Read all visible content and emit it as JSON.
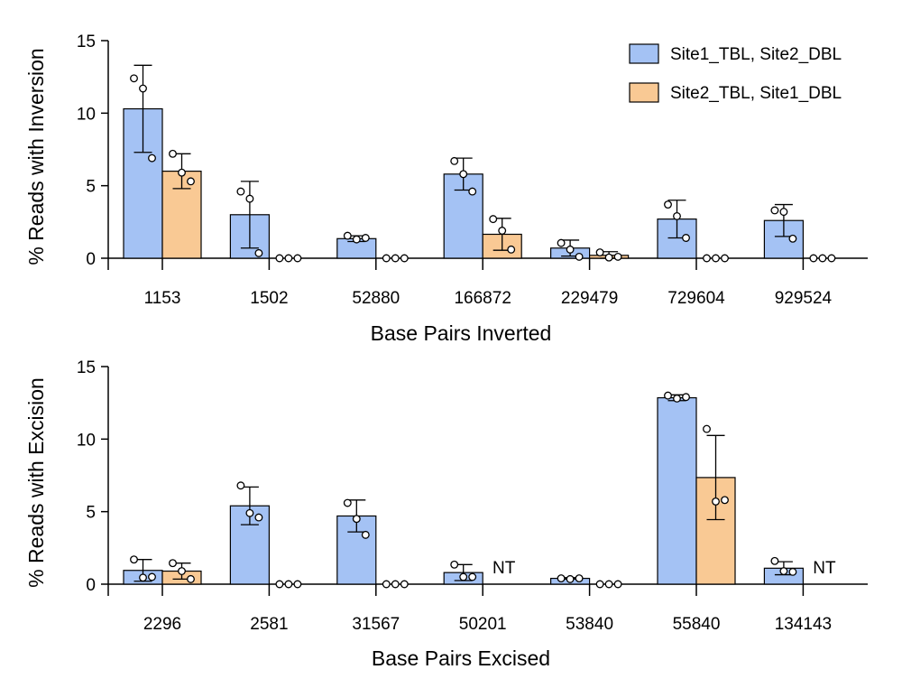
{
  "colors": {
    "series_1": "#a4c2f4",
    "series_2": "#f9c994",
    "stroke": "#000000"
  },
  "legend": {
    "placement": "top-right",
    "entries": [
      "Site1_TBL, Site2_DBL",
      "Site2_TBL, Site1_DBL"
    ]
  },
  "chart_data": [
    {
      "type": "bar",
      "xlabel": "Base Pairs Inverted",
      "ylabel": "% Reads with Inversion",
      "ylim": [
        0,
        15
      ],
      "yticks": [
        0,
        5,
        10,
        15
      ],
      "grid": false,
      "legend": true,
      "categories": [
        "1153",
        "1502",
        "52880",
        "166872",
        "229479",
        "729604",
        "929524"
      ],
      "series": [
        {
          "name": "Site1_TBL, Site2_DBL",
          "values": [
            10.3,
            3.0,
            1.35,
            5.8,
            0.7,
            2.7,
            2.6
          ],
          "error": [
            3.0,
            2.3,
            0.2,
            1.1,
            0.55,
            1.3,
            1.1
          ],
          "points": [
            [
              12.4,
              11.7,
              6.9
            ],
            [
              4.6,
              4.1,
              0.35
            ],
            [
              1.55,
              1.3,
              1.4
            ],
            [
              6.7,
              5.8,
              4.6
            ],
            [
              1.05,
              0.6,
              0.1
            ],
            [
              3.7,
              2.9,
              1.4
            ],
            [
              3.3,
              3.2,
              1.35
            ]
          ]
        },
        {
          "name": "Site2_TBL, Site1_DBL",
          "values": [
            6.0,
            0,
            0,
            1.65,
            0.2,
            0,
            0
          ],
          "error": [
            1.2,
            0,
            0,
            1.1,
            0.25,
            0,
            0
          ],
          "points": [
            [
              7.2,
              5.9,
              5.3
            ],
            [
              0,
              0,
              0
            ],
            [
              0,
              0,
              0
            ],
            [
              2.7,
              1.9,
              0.6
            ],
            [
              0.4,
              0.05,
              0.1
            ],
            [
              0,
              0,
              0
            ],
            [
              0,
              0,
              0
            ]
          ]
        }
      ],
      "annotations": []
    },
    {
      "type": "bar",
      "xlabel": "Base Pairs Excised",
      "ylabel": "% Reads with Excision",
      "ylim": [
        0,
        15
      ],
      "yticks": [
        0,
        5,
        10,
        15
      ],
      "grid": false,
      "legend": false,
      "categories": [
        "2296",
        "2581",
        "31567",
        "50201",
        "53840",
        "55840",
        "134143"
      ],
      "series": [
        {
          "name": "Site1_TBL, Site2_DBL",
          "values": [
            0.95,
            5.4,
            4.7,
            0.8,
            0.4,
            12.85,
            1.1
          ],
          "error": [
            0.75,
            1.3,
            1.1,
            0.55,
            0.05,
            0.2,
            0.45
          ],
          "points": [
            [
              1.7,
              0.45,
              0.5
            ],
            [
              6.8,
              4.9,
              4.6
            ],
            [
              5.6,
              4.5,
              3.4
            ],
            [
              1.35,
              0.5,
              0.5
            ],
            [
              0.4,
              0.35,
              0.4
            ],
            [
              13.0,
              12.8,
              12.9
            ],
            [
              1.6,
              0.9,
              0.85
            ]
          ]
        },
        {
          "name": "Site2_TBL, Site1_DBL",
          "values": [
            0.9,
            0,
            0,
            null,
            0,
            7.35,
            null
          ],
          "error": [
            0.55,
            0,
            0,
            null,
            0,
            2.9,
            null
          ],
          "points": [
            [
              1.45,
              0.9,
              0.35
            ],
            [
              0,
              0,
              0
            ],
            [
              0,
              0,
              0
            ],
            null,
            [
              0,
              0,
              0
            ],
            [
              10.7,
              5.7,
              5.8
            ],
            null
          ]
        }
      ],
      "annotations": [
        {
          "category": "50201",
          "series": 1,
          "text": "NT"
        },
        {
          "category": "134143",
          "series": 1,
          "text": "NT"
        }
      ]
    }
  ]
}
